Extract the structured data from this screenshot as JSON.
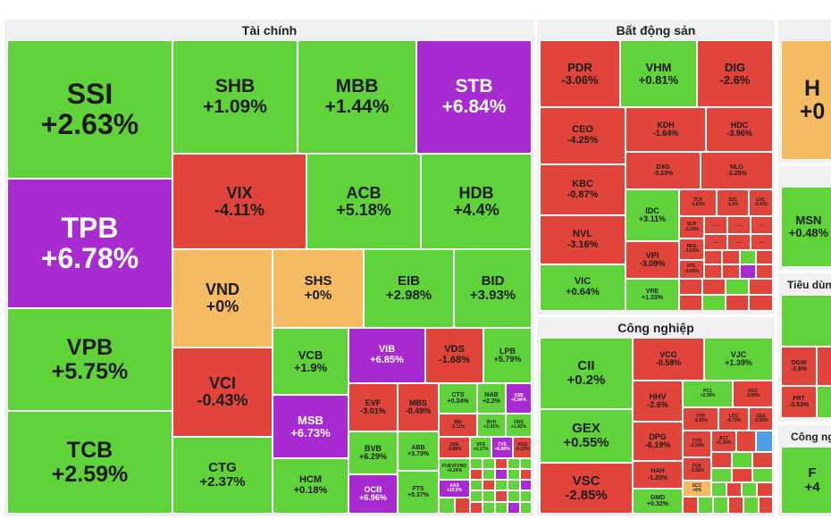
{
  "sectors": {
    "tai_chinh": "Tài chính",
    "bat_dong_san": "Bất động sản",
    "cong_nghiep": "Công nghiệp",
    "tieu_dung": "Tiêu dùng",
    "cong_nghe": "Công ng"
  },
  "colors": {
    "up": "#5fd339",
    "down": "#e0443a",
    "ceiling": "#a82ad1",
    "unchanged": "#f4bb62",
    "floor": "#4ba0e6"
  },
  "tiles": {
    "ssi": {
      "symbol": "SSI",
      "change": "+2.63%"
    },
    "shb": {
      "symbol": "SHB",
      "change": "+1.09%"
    },
    "mbb": {
      "symbol": "MBB",
      "change": "+1.44%"
    },
    "stb": {
      "symbol": "STB",
      "change": "+6.84%"
    },
    "tpb": {
      "symbol": "TPB",
      "change": "+6.78%"
    },
    "vix": {
      "symbol": "VIX",
      "change": "-4.11%"
    },
    "acb": {
      "symbol": "ACB",
      "change": "+5.18%"
    },
    "hdb": {
      "symbol": "HDB",
      "change": "+4.4%"
    },
    "vnd": {
      "symbol": "VND",
      "change": "+0%"
    },
    "shs": {
      "symbol": "SHS",
      "change": "+0%"
    },
    "eib": {
      "symbol": "EIB",
      "change": "+2.98%"
    },
    "bid": {
      "symbol": "BID",
      "change": "+3.93%"
    },
    "vpb": {
      "symbol": "VPB",
      "change": "+5.75%"
    },
    "vci": {
      "symbol": "VCI",
      "change": "-0.43%"
    },
    "vcb": {
      "symbol": "VCB",
      "change": "+1.9%"
    },
    "vib": {
      "symbol": "VIB",
      "change": "+6.85%"
    },
    "vds": {
      "symbol": "VDS",
      "change": "-1.68%"
    },
    "lpb": {
      "symbol": "LPB",
      "change": "+5.79%"
    },
    "evf": {
      "symbol": "EVF",
      "change": "-3.01%"
    },
    "mbs": {
      "symbol": "MBS",
      "change": "-0.49%"
    },
    "cts": {
      "symbol": "CTS",
      "change": "+0.24%"
    },
    "nab": {
      "symbol": "NAB",
      "change": "+2.2%"
    },
    "ssb": {
      "symbol": "SSB",
      "change": "+6.94%"
    },
    "bsi": {
      "symbol": "BSI",
      "change": "-2.11%"
    },
    "bvh": {
      "symbol": "BVH",
      "change": "+1.01%"
    },
    "ors": {
      "symbol": "ORS",
      "change": "+1.92%"
    },
    "tcb": {
      "symbol": "TCB",
      "change": "+2.59%"
    },
    "ctg": {
      "symbol": "CTG",
      "change": "+2.37%"
    },
    "msb": {
      "symbol": "MSB",
      "change": "+6.73%"
    },
    "bvb": {
      "symbol": "BVB",
      "change": "+6.29%"
    },
    "abb": {
      "symbol": "ABB",
      "change": "+3.73%"
    },
    "dse": {
      "symbol": "DSE",
      "change": "-0.88%"
    },
    "vfs": {
      "symbol": "VFS",
      "change": "+0.17%"
    },
    "tvs": {
      "symbol": "TVS",
      "change": "+6.88%"
    },
    "ags": {
      "symbol": "AGS",
      "change": "-0.22%"
    },
    "fuevfvnd": {
      "symbol": "FUEVFVND",
      "change": "+0.24%"
    },
    "aas": {
      "symbol": "AAS",
      "change": "+10.0%"
    },
    "hcm": {
      "symbol": "HCM",
      "change": "+0.18%"
    },
    "ocb": {
      "symbol": "OCB",
      "change": "+6.96%"
    },
    "fts": {
      "symbol": "FTS",
      "change": "+0.37%"
    },
    "pdr": {
      "symbol": "PDR",
      "change": "-3.06%"
    },
    "vhm": {
      "symbol": "VHM",
      "change": "+0.81%"
    },
    "dig": {
      "symbol": "DIG",
      "change": "-2.6%"
    },
    "ceo": {
      "symbol": "CEO",
      "change": "-4.25%"
    },
    "kdh": {
      "symbol": "KDH",
      "change": "-1.64%"
    },
    "hdc": {
      "symbol": "HDC",
      "change": "-3.96%"
    },
    "dxg": {
      "symbol": "DXG",
      "change": "-3.23%"
    },
    "nlg": {
      "symbol": "NLG",
      "change": "-3.25%"
    },
    "kbc": {
      "symbol": "KBC",
      "change": "-0.87%"
    },
    "idc": {
      "symbol": "IDC",
      "change": "+3.11%"
    },
    "tch": {
      "symbol": "TCH",
      "change": "-3.83%"
    },
    "szc": {
      "symbol": "SZC",
      "change": "-1.6%"
    },
    "lhc": {
      "symbol": "LHC",
      "change": "-3.43%"
    },
    "nvl": {
      "symbol": "NVL",
      "change": "-3.16%"
    },
    "scr": {
      "symbol": "SCR",
      "change": "-3.16%"
    },
    "vpi": {
      "symbol": "VPI",
      "change": "-3.09%"
    },
    "pdg": {
      "symbol": "PDG",
      "change": "-3.03%"
    },
    "ntl": {
      "symbol": "NTL",
      "change": "-3.65%"
    },
    "vic": {
      "symbol": "VIC",
      "change": "+0.64%"
    },
    "vre": {
      "symbol": "VRE",
      "change": "+1.33%"
    },
    "cii": {
      "symbol": "CII",
      "change": "+0.2%"
    },
    "vcg": {
      "symbol": "VCG",
      "change": "-0.58%"
    },
    "vjc": {
      "symbol": "VJC",
      "change": "+1.39%"
    },
    "hhv": {
      "symbol": "HHV",
      "change": "-2.6%"
    },
    "pc1": {
      "symbol": "PC1",
      "change": "+2.39%"
    },
    "vgc": {
      "symbol": "VGC",
      "change": "-3.99%"
    },
    "gex": {
      "symbol": "GEX",
      "change": "+0.55%"
    },
    "vtp": {
      "symbol": "VTP",
      "change": "-1.35%"
    },
    "lcg": {
      "symbol": "LCG",
      "change": "-4.73%"
    },
    "gee": {
      "symbol": "GEE",
      "change": "-3.55%"
    },
    "dpg": {
      "symbol": "DPG",
      "change": "-6.19%"
    },
    "ctd": {
      "symbol": "CTD",
      "change": "-2.04%"
    },
    "act": {
      "symbol": "ACT",
      "change": "+1.39%"
    },
    "fck": {
      "symbol": "FCK",
      "change": "-3.28%"
    },
    "hah": {
      "symbol": "HAH",
      "change": "-1.33%"
    },
    "vsc": {
      "symbol": "VSC",
      "change": "-2.85%"
    },
    "scc": {
      "symbol": "SCC",
      "change": "+0%"
    },
    "gmd": {
      "symbol": "GMD",
      "change": "+0.32%"
    },
    "hpg": {
      "symbol": "H",
      "change": "+0"
    },
    "msn": {
      "symbol": "MSN",
      "change": "+0.48%"
    },
    "dgw": {
      "symbol": "DGW",
      "change": "-3.6%"
    },
    "frt": {
      "symbol": "FRT",
      "change": "-3.53%"
    },
    "fpt": {
      "symbol": "F",
      "change": "+4"
    }
  }
}
